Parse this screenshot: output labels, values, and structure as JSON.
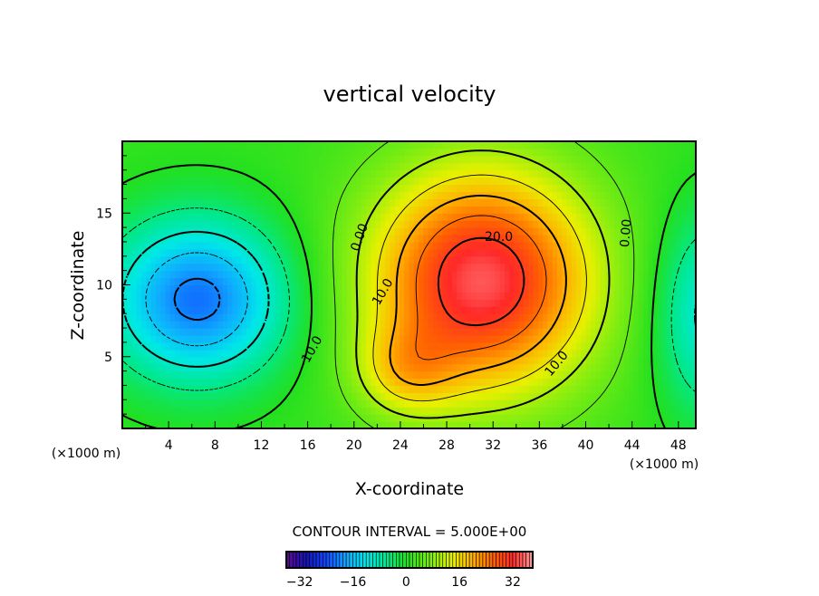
{
  "chart_data": {
    "type": "heatmap",
    "subtype": "filled-contour",
    "title": "vertical velocity",
    "xlabel": "X-coordinate",
    "ylabel": "Z-coordinate",
    "x_unit_left": "(×1000 m)",
    "x_unit_right": "(×1000 m)",
    "xlim": [
      0,
      49.5
    ],
    "ylim": [
      0,
      20
    ],
    "xticks": [
      4,
      8,
      12,
      16,
      20,
      24,
      28,
      32,
      36,
      40,
      44,
      48
    ],
    "xtick_labels": [
      "4",
      "8",
      "12",
      "16",
      "20",
      "24",
      "28",
      "32",
      "36",
      "40",
      "44",
      "48"
    ],
    "yticks": [
      5,
      10,
      15
    ],
    "ytick_labels": [
      "5",
      "10",
      "15"
    ],
    "contour_interval_label": "CONTOUR INTERVAL = 5.000E+00",
    "contour_interval": 5,
    "contour_levels": [
      -20,
      -15,
      -10,
      -5,
      0,
      5,
      10,
      15,
      20,
      25,
      30
    ],
    "contour_labels": [
      {
        "text": "0.00",
        "x": 20.5,
        "z": 13.3,
        "angle": -70
      },
      {
        "text": "10.0",
        "x": 22.5,
        "z": 9.5,
        "angle": -60
      },
      {
        "text": "20.0",
        "x": 32.5,
        "z": 13.3,
        "angle": 0
      },
      {
        "text": "10.0",
        "x": 37.5,
        "z": 4.5,
        "angle": -50
      },
      {
        "text": "0.00",
        "x": 43.5,
        "z": 13.6,
        "angle": -85
      },
      {
        "text": "10.0",
        "x": 16.4,
        "z": 5.5,
        "angle": -60
      }
    ],
    "field_components": [
      {
        "sign": "positive",
        "amplitude": 33,
        "x": 31,
        "z": 10.3,
        "sx": 6.8,
        "sz": 5.5
      },
      {
        "sign": "positive",
        "amplitude": 10,
        "x": 24.5,
        "z": 4,
        "sx": 3,
        "sz": 2.2
      },
      {
        "sign": "negative",
        "amplitude": -23,
        "x": 6.5,
        "z": 9,
        "sx": 5.5,
        "sz": 4
      },
      {
        "sign": "negative",
        "amplitude": -13,
        "x": 50.5,
        "z": 8,
        "sx": 3.2,
        "sz": 5
      }
    ],
    "colorbar": {
      "range": [
        -36,
        38
      ],
      "ticks": [
        -32,
        -16,
        0,
        16,
        32
      ],
      "tick_labels": [
        "−32",
        "−16",
        "0",
        "16",
        "32"
      ]
    },
    "colormap": [
      [
        -36,
        "#5a0a8c"
      ],
      [
        -30,
        "#1414b4"
      ],
      [
        -24,
        "#1048ff"
      ],
      [
        -18,
        "#10a8ff"
      ],
      [
        -12,
        "#00e8e8"
      ],
      [
        -6,
        "#00e890"
      ],
      [
        0,
        "#22e020"
      ],
      [
        8,
        "#88ee10"
      ],
      [
        14,
        "#e8f000"
      ],
      [
        20,
        "#ffb000"
      ],
      [
        26,
        "#ff6400"
      ],
      [
        32,
        "#ff2828"
      ],
      [
        38,
        "#ff9898"
      ]
    ]
  }
}
